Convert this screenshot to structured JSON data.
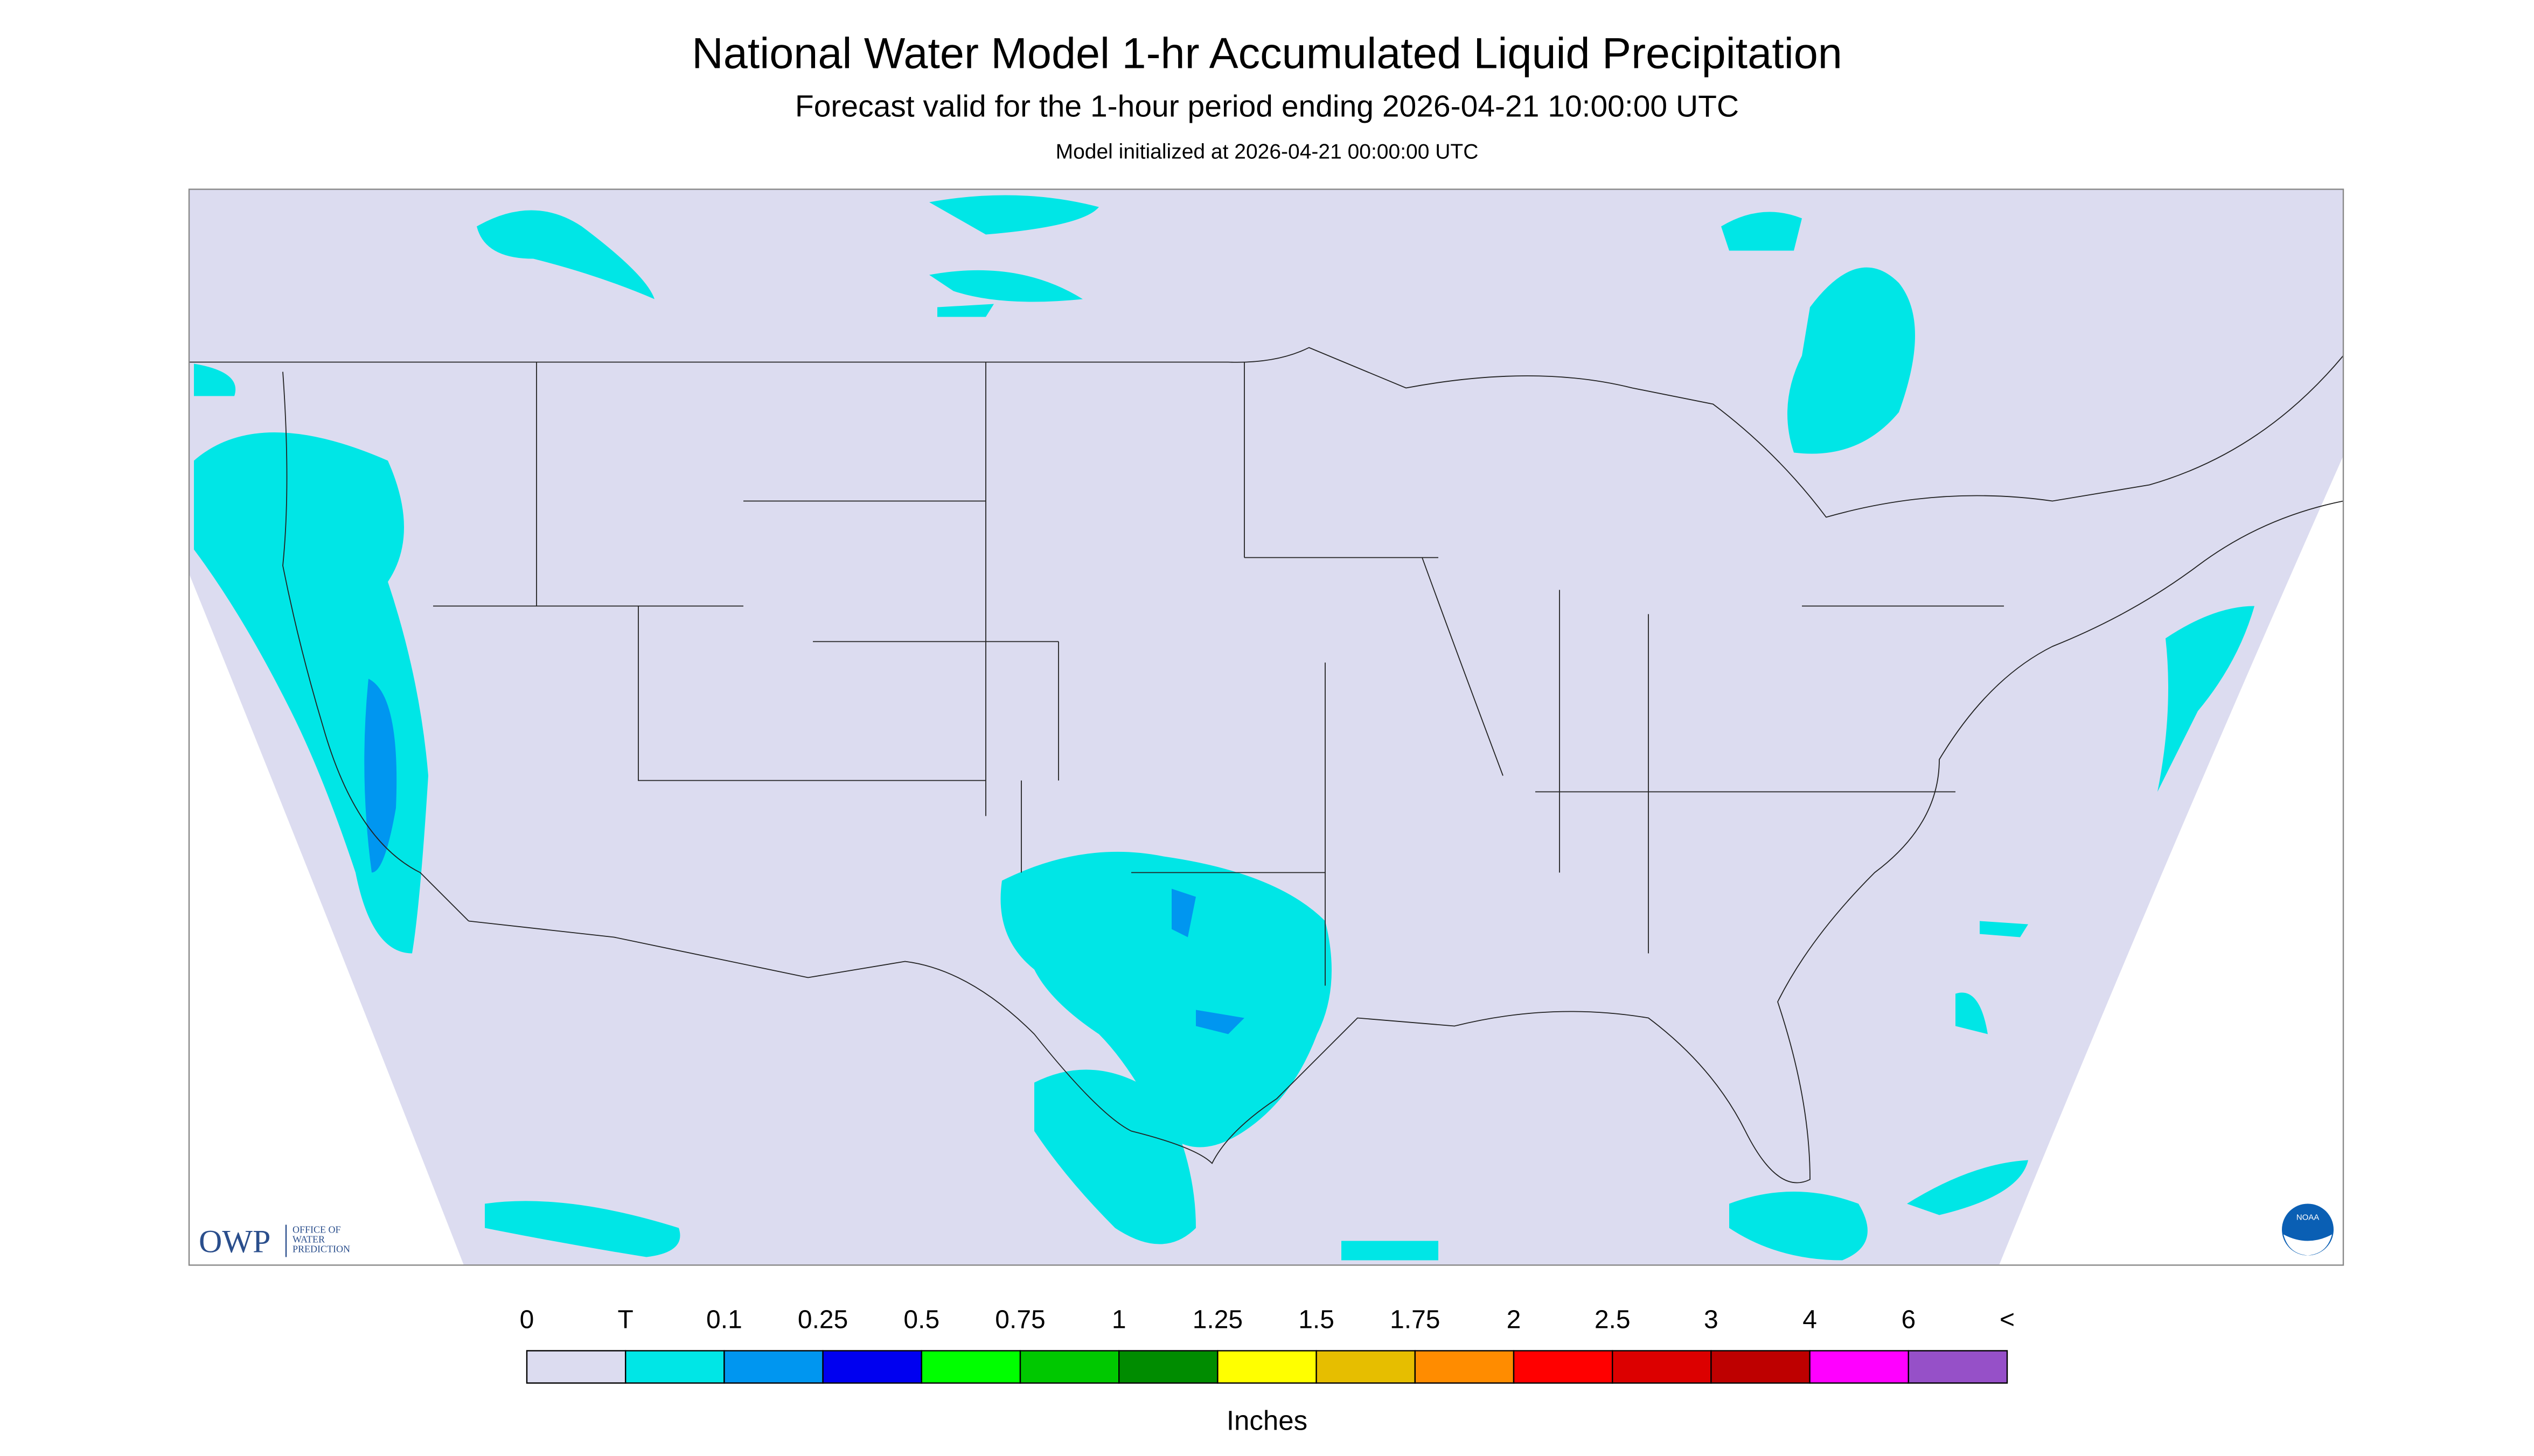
{
  "header": {
    "title": "National Water Model 1-hr Accumulated Liquid Precipitation",
    "subtitle": "Forecast valid for the 1-hour period ending 2026-04-21 10:00:00 UTC",
    "note": "Model initialized at 2026-04-21 00:00:00 UTC"
  },
  "logos": {
    "owp": "OWP",
    "owp_text": [
      "OFFICE OF",
      "WATER",
      "PREDICTION"
    ],
    "noaa": "NOAA"
  },
  "legend": {
    "labels": [
      "0",
      "T",
      "0.1",
      "0.25",
      "0.5",
      "0.75",
      "1",
      "1.25",
      "1.5",
      "1.75",
      "2",
      "2.5",
      "3",
      "4",
      "6",
      "<"
    ],
    "colors": [
      "#dcdcf0",
      "#00e6e6",
      "#0096f0",
      "#0000f0",
      "#00ff00",
      "#00c800",
      "#008c00",
      "#ffff00",
      "#e6be00",
      "#ff8c00",
      "#ff0000",
      "#dc0000",
      "#be0000",
      "#ff00ff",
      "#9650c8"
    ],
    "units": "Inches"
  }
}
